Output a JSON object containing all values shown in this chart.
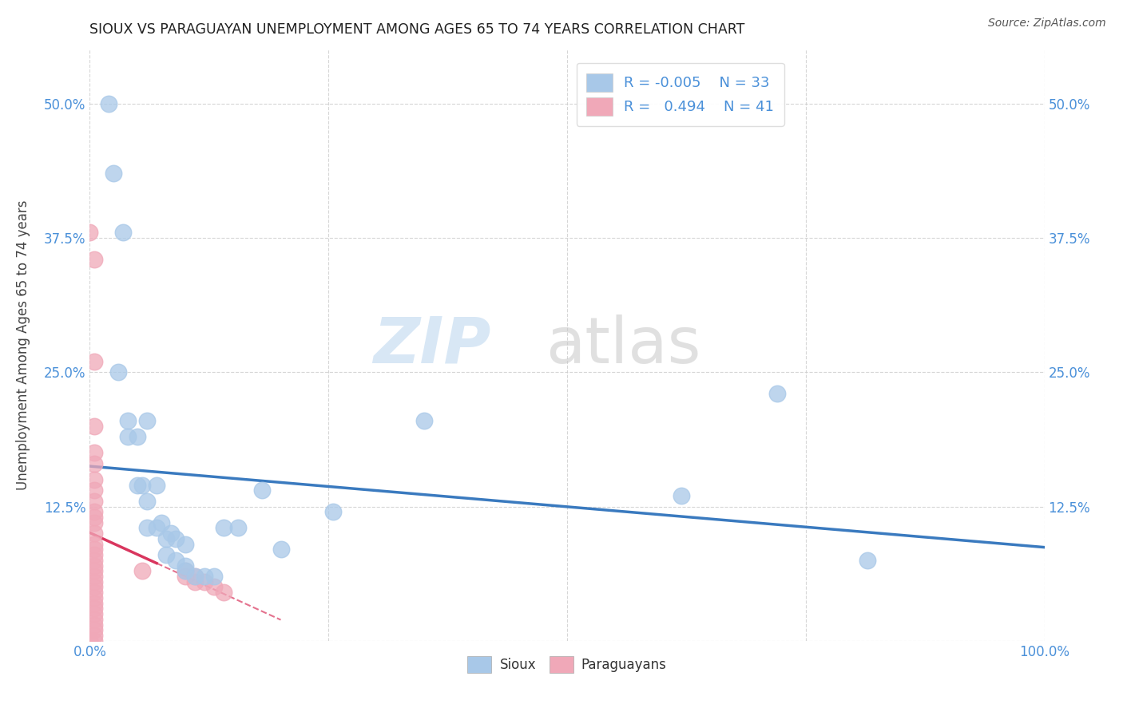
{
  "title": "SIOUX VS PARAGUAYAN UNEMPLOYMENT AMONG AGES 65 TO 74 YEARS CORRELATION CHART",
  "source": "Source: ZipAtlas.com",
  "ylabel": "Unemployment Among Ages 65 to 74 years",
  "xlim": [
    0.0,
    1.0
  ],
  "ylim": [
    0.0,
    0.55
  ],
  "xtick_vals": [
    0.0,
    0.25,
    0.5,
    0.75,
    1.0
  ],
  "xticklabels": [
    "0.0%",
    "",
    "",
    "",
    "100.0%"
  ],
  "ytick_vals": [
    0.0,
    0.125,
    0.25,
    0.375,
    0.5
  ],
  "yticklabels_left": [
    "",
    "12.5%",
    "25.0%",
    "37.5%",
    "50.0%"
  ],
  "yticklabels_right": [
    "",
    "12.5%",
    "25.0%",
    "37.5%",
    "50.0%"
  ],
  "watermark_zip": "ZIP",
  "watermark_atlas": "atlas",
  "sioux_color": "#a8c8e8",
  "paraguayan_color": "#f0a8b8",
  "sioux_trend_color": "#3a7abf",
  "paraguayan_trend_color": "#d9365e",
  "background_color": "#ffffff",
  "grid_color": "#cccccc",
  "title_color": "#222222",
  "source_color": "#555555",
  "tick_color": "#4a90d9",
  "legend_label_color": "#4a90d9",
  "sioux_points": [
    [
      0.02,
      0.5
    ],
    [
      0.025,
      0.435
    ],
    [
      0.035,
      0.38
    ],
    [
      0.03,
      0.25
    ],
    [
      0.04,
      0.205
    ],
    [
      0.04,
      0.19
    ],
    [
      0.05,
      0.19
    ],
    [
      0.05,
      0.145
    ],
    [
      0.06,
      0.205
    ],
    [
      0.055,
      0.145
    ],
    [
      0.07,
      0.145
    ],
    [
      0.06,
      0.13
    ],
    [
      0.06,
      0.105
    ],
    [
      0.07,
      0.105
    ],
    [
      0.075,
      0.11
    ],
    [
      0.085,
      0.1
    ],
    [
      0.08,
      0.095
    ],
    [
      0.09,
      0.095
    ],
    [
      0.1,
      0.09
    ],
    [
      0.08,
      0.08
    ],
    [
      0.09,
      0.075
    ],
    [
      0.1,
      0.07
    ],
    [
      0.1,
      0.065
    ],
    [
      0.11,
      0.06
    ],
    [
      0.12,
      0.06
    ],
    [
      0.13,
      0.06
    ],
    [
      0.14,
      0.105
    ],
    [
      0.155,
      0.105
    ],
    [
      0.18,
      0.14
    ],
    [
      0.2,
      0.085
    ],
    [
      0.255,
      0.12
    ],
    [
      0.35,
      0.205
    ],
    [
      0.62,
      0.135
    ],
    [
      0.72,
      0.23
    ],
    [
      0.815,
      0.075
    ]
  ],
  "paraguayan_points": [
    [
      0.0,
      0.38
    ],
    [
      0.005,
      0.355
    ],
    [
      0.005,
      0.26
    ],
    [
      0.005,
      0.2
    ],
    [
      0.005,
      0.175
    ],
    [
      0.005,
      0.165
    ],
    [
      0.005,
      0.15
    ],
    [
      0.005,
      0.14
    ],
    [
      0.005,
      0.13
    ],
    [
      0.005,
      0.12
    ],
    [
      0.005,
      0.115
    ],
    [
      0.005,
      0.11
    ],
    [
      0.005,
      0.1
    ],
    [
      0.005,
      0.09
    ],
    [
      0.005,
      0.085
    ],
    [
      0.005,
      0.08
    ],
    [
      0.005,
      0.075
    ],
    [
      0.005,
      0.07
    ],
    [
      0.005,
      0.065
    ],
    [
      0.005,
      0.06
    ],
    [
      0.005,
      0.055
    ],
    [
      0.005,
      0.05
    ],
    [
      0.005,
      0.045
    ],
    [
      0.005,
      0.04
    ],
    [
      0.005,
      0.035
    ],
    [
      0.005,
      0.03
    ],
    [
      0.005,
      0.025
    ],
    [
      0.005,
      0.02
    ],
    [
      0.005,
      0.015
    ],
    [
      0.005,
      0.01
    ],
    [
      0.005,
      0.005
    ],
    [
      0.005,
      0.0
    ],
    [
      0.0,
      0.0
    ],
    [
      0.055,
      0.065
    ],
    [
      0.1,
      0.065
    ],
    [
      0.1,
      0.06
    ],
    [
      0.11,
      0.06
    ],
    [
      0.11,
      0.055
    ],
    [
      0.12,
      0.055
    ],
    [
      0.13,
      0.05
    ],
    [
      0.14,
      0.045
    ]
  ]
}
